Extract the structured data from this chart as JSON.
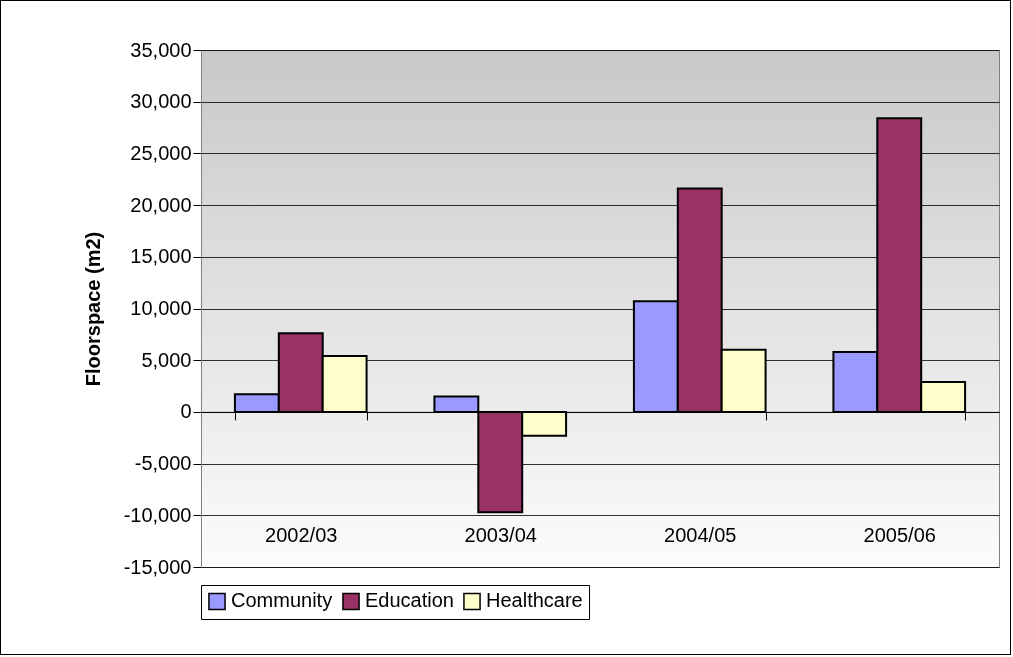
{
  "chart_data": {
    "type": "bar",
    "ylabel": "Floorspace (m2)",
    "categories": [
      "2002/03",
      "2003/04",
      "2004/05",
      "2005/06"
    ],
    "series": [
      {
        "name": "Community",
        "color": "#9999ff",
        "values": [
          1700,
          1500,
          10700,
          5800
        ]
      },
      {
        "name": "Education",
        "color": "#993366",
        "values": [
          7600,
          -9700,
          21600,
          28400
        ]
      },
      {
        "name": "Healthcare",
        "color": "#ffffcc",
        "values": [
          5400,
          -2300,
          6000,
          2900
        ]
      }
    ],
    "ylim": [
      -15000,
      35000
    ],
    "yticks": [
      {
        "value": -15000,
        "label": "-15,000"
      },
      {
        "value": -10000,
        "label": "-10,000"
      },
      {
        "value": -5000,
        "label": "-5,000"
      },
      0,
      {
        "value": 5000,
        "label": "5,000"
      },
      {
        "value": 10000,
        "label": "10,000"
      },
      {
        "value": 15000,
        "label": "15,000"
      },
      {
        "value": 20000,
        "label": "20,000"
      },
      {
        "value": 25000,
        "label": "25,000"
      },
      {
        "value": 30000,
        "label": "30,000"
      },
      {
        "value": 35000,
        "label": "35,000"
      }
    ],
    "grid": "y",
    "legend": "bottom"
  }
}
